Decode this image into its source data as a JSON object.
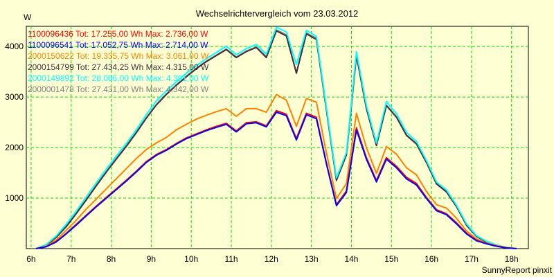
{
  "chart_data": {
    "type": "line",
    "title": "Wechselrichtervergleich vom 23.03.2012",
    "ylabel": "W",
    "xlabel": "",
    "footer": "SunnyReport pinxit",
    "xlim": [
      5.88,
      18.42
    ],
    "ylim": [
      0,
      4400
    ],
    "grid": true,
    "legend_position": "top-left",
    "x_start": 6.125,
    "x_step": 0.25,
    "x_ticks": [
      6,
      7,
      8,
      9,
      10,
      11,
      12,
      13,
      14,
      15,
      16,
      17,
      18
    ],
    "x_tick_labels": [
      "6h",
      "7h",
      "8h",
      "9h",
      "10h",
      "11h",
      "12h",
      "13h",
      "14h",
      "15h",
      "16h",
      "17h",
      "18h"
    ],
    "y_ticks": [
      1000,
      2000,
      3000,
      4000
    ],
    "y_tick_labels": [
      "1000",
      "2000",
      "3000",
      "4000"
    ],
    "series": [
      {
        "name": "1100096436",
        "legend": "1100096436 Tot: 17.255,00 Wh Max: 2.736,00 W",
        "color": "#FF0000",
        "values": [
          0,
          40,
          140,
          300,
          480,
          660,
          840,
          1010,
          1180,
          1350,
          1530,
          1720,
          1860,
          1960,
          2080,
          2190,
          2270,
          2350,
          2420,
          2480,
          2330,
          2490,
          2510,
          2430,
          2730,
          2660,
          2180,
          2680,
          2600,
          1700,
          870,
          1140,
          2390,
          1800,
          1350,
          1800,
          1630,
          1410,
          1290,
          1010,
          770,
          690,
          510,
          305,
          165,
          100,
          50,
          15,
          0
        ]
      },
      {
        "name": "1100096541",
        "legend": "1100096541 Tot: 17.052,75 Wh Max: 2.714,00 W",
        "color": "#0000FF",
        "values": [
          0,
          35,
          130,
          290,
          465,
          645,
          825,
          995,
          1165,
          1335,
          1515,
          1705,
          1845,
          1945,
          2065,
          2175,
          2255,
          2335,
          2400,
          2460,
          2310,
          2470,
          2490,
          2410,
          2700,
          2630,
          2150,
          2650,
          2570,
          1680,
          850,
          1110,
          2350,
          1770,
          1320,
          1770,
          1600,
          1380,
          1260,
          990,
          750,
          670,
          490,
          290,
          155,
          95,
          45,
          12,
          0
        ]
      },
      {
        "name": "2000150622",
        "legend": "2000150622 Tot: 19.335,75 Wh Max: 3.061,00 W",
        "color": "#FF8000",
        "values": [
          0,
          50,
          170,
          360,
          560,
          780,
          980,
          1180,
          1380,
          1580,
          1780,
          1960,
          2090,
          2200,
          2350,
          2460,
          2560,
          2640,
          2710,
          2770,
          2620,
          2770,
          2770,
          2700,
          3050,
          2940,
          2420,
          2970,
          2900,
          1900,
          990,
          1290,
          2680,
          2000,
          1490,
          2020,
          1870,
          1600,
          1460,
          1130,
          870,
          800,
          600,
          350,
          190,
          110,
          60,
          20,
          0
        ]
      },
      {
        "name": "2000154799",
        "legend": "2000154799 Tot: 27.434,25 Wh Max: 4.315,00 W",
        "color": "#403040",
        "values": [
          0,
          60,
          220,
          430,
          690,
          960,
          1240,
          1510,
          1770,
          2020,
          2290,
          2580,
          2840,
          3050,
          3230,
          3400,
          3560,
          3700,
          3820,
          3940,
          3780,
          3900,
          3980,
          3780,
          4310,
          4210,
          3470,
          4250,
          4140,
          2750,
          1350,
          1850,
          3820,
          2770,
          2040,
          2830,
          2600,
          2240,
          2070,
          1700,
          1280,
          1120,
          830,
          460,
          240,
          130,
          65,
          20,
          0
        ]
      },
      {
        "name": "2000149892",
        "legend": "2000149892 Tot: 28.086,00 Wh Max: 4.391,00 W",
        "color": "#00FFFF",
        "values": [
          0,
          80,
          250,
          480,
          740,
          1020,
          1300,
          1570,
          1830,
          2080,
          2350,
          2650,
          2920,
          3120,
          3300,
          3470,
          3620,
          3760,
          3880,
          4010,
          3835,
          3960,
          4040,
          3850,
          4380,
          4290,
          3640,
          4320,
          4200,
          2800,
          1400,
          1900,
          3900,
          2830,
          2090,
          2910,
          2670,
          2300,
          2120,
          1740,
          1320,
          1160,
          860,
          490,
          255,
          145,
          72,
          25,
          0
        ]
      },
      {
        "name": "2000001478",
        "legend": "2000001478 Tot: 27.431,00 Wh Max: 4.342,00 W",
        "color": "#808080",
        "values": [
          0,
          65,
          230,
          440,
          700,
          970,
          1250,
          1520,
          1780,
          2030,
          2300,
          2590,
          2850,
          3060,
          3240,
          3410,
          3570,
          3710,
          3830,
          3950,
          3790,
          3910,
          3990,
          3800,
          4330,
          4230,
          3480,
          4270,
          4160,
          2760,
          1360,
          1860,
          3830,
          2780,
          2050,
          2840,
          2610,
          2250,
          2080,
          1710,
          1290,
          1130,
          840,
          470,
          245,
          135,
          68,
          22,
          0
        ]
      }
    ]
  }
}
